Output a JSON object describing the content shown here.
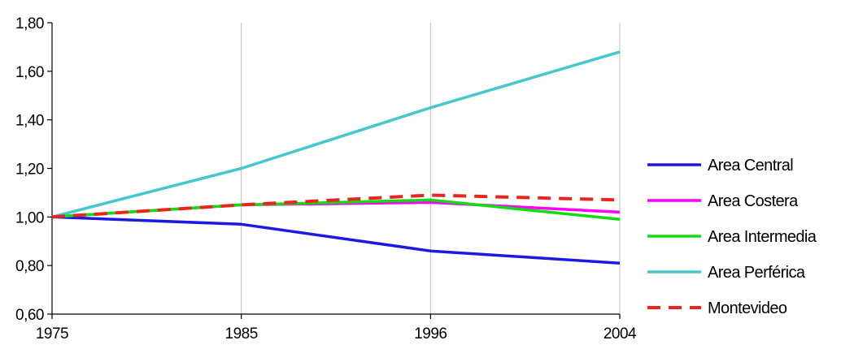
{
  "chart_data": {
    "type": "line",
    "title": "",
    "xlabel": "",
    "ylabel": "",
    "categories": [
      "1975",
      "1985",
      "1996",
      "2004"
    ],
    "ylim": [
      0.6,
      1.8
    ],
    "yticks": [
      0.6,
      0.8,
      1.0,
      1.2,
      1.4,
      1.6,
      1.8
    ],
    "ytick_labels": [
      "0,60",
      "0,80",
      "1,00",
      "1,20",
      "1,40",
      "1,60",
      "1,80"
    ],
    "grid": "vertical",
    "legend_position": "right",
    "series": [
      {
        "name": "Area Central",
        "values": [
          1.0,
          0.97,
          0.86,
          0.81
        ],
        "color": "#1a1ae0",
        "dashed": false
      },
      {
        "name": "Area Costera",
        "values": [
          1.0,
          1.05,
          1.06,
          1.02
        ],
        "color": "#ff00ff",
        "dashed": false
      },
      {
        "name": "Area Intermedia",
        "values": [
          1.0,
          1.05,
          1.07,
          0.99
        ],
        "color": "#11dd11",
        "dashed": false
      },
      {
        "name": "Area Perférica",
        "values": [
          1.0,
          1.2,
          1.45,
          1.68
        ],
        "color": "#44c8cc",
        "dashed": false
      },
      {
        "name": "Montevideo",
        "values": [
          1.0,
          1.05,
          1.09,
          1.07
        ],
        "color": "#e8261d",
        "dashed": true
      }
    ]
  }
}
